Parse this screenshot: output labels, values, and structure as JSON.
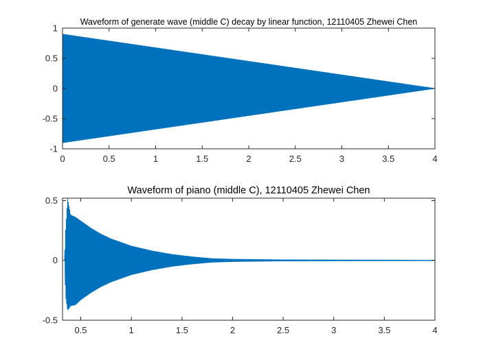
{
  "chart_data": [
    {
      "type": "line",
      "title": "Waveform of generate wave (middle C) decay by linear function, 12110405 Zhewei Chen",
      "xlabel": "",
      "ylabel": "",
      "xlim": [
        0,
        4
      ],
      "ylim": [
        -1,
        1
      ],
      "xticks": [
        0,
        0.5,
        1,
        1.5,
        2,
        2.5,
        3,
        3.5,
        4
      ],
      "xtick_labels": [
        "0",
        "0.5",
        "1",
        "1.5",
        "2",
        "2.5",
        "3",
        "3.5",
        "4"
      ],
      "yticks": [
        1,
        0.5,
        0,
        -0.5,
        -1
      ],
      "ytick_labels": [
        "1",
        "0.5",
        "0",
        "-0.5",
        "-1"
      ],
      "grid": false,
      "series": [
        {
          "color": "#0072BD",
          "kind": "oscillating-envelope",
          "envelope": {
            "x": [
              0,
              4
            ],
            "upper": [
              0.9,
              0
            ],
            "lower": [
              -0.9,
              0
            ]
          }
        }
      ]
    },
    {
      "type": "line",
      "title": "Waveform of piano (middle C), 12110405 Zhewei Chen",
      "xlabel": "",
      "ylabel": "",
      "xlim": [
        0.32,
        4
      ],
      "ylim": [
        -0.5,
        0.52
      ],
      "xticks": [
        0.5,
        1,
        1.5,
        2,
        2.5,
        3,
        3.5,
        4
      ],
      "xtick_labels": [
        "0.5",
        "1",
        "1.5",
        "2",
        "2.5",
        "3",
        "3.5",
        "4"
      ],
      "yticks": [
        0.5,
        0,
        -0.5
      ],
      "ytick_labels": [
        "0.5",
        "0",
        "-0.5"
      ],
      "grid": false,
      "series": [
        {
          "color": "#0072BD",
          "kind": "oscillating-envelope",
          "envelope": {
            "x": [
              0.34,
              0.35,
              0.37,
              0.4,
              0.45,
              0.5,
              0.6,
              0.7,
              0.8,
              0.9,
              1.0,
              1.2,
              1.4,
              1.6,
              1.8,
              2.0,
              2.5,
              3.0,
              3.5,
              4.0
            ],
            "upper": [
              0.0,
              0.25,
              0.52,
              0.38,
              0.36,
              0.33,
              0.27,
              0.22,
              0.18,
              0.15,
              0.12,
              0.08,
              0.05,
              0.03,
              0.015,
              0.01,
              0.005,
              0.004,
              0.003,
              0.002
            ],
            "lower": [
              0.0,
              -0.3,
              -0.42,
              -0.38,
              -0.37,
              -0.33,
              -0.27,
              -0.22,
              -0.18,
              -0.15,
              -0.12,
              -0.08,
              -0.05,
              -0.03,
              -0.015,
              -0.01,
              -0.005,
              -0.004,
              -0.003,
              -0.002
            ]
          }
        }
      ]
    }
  ]
}
